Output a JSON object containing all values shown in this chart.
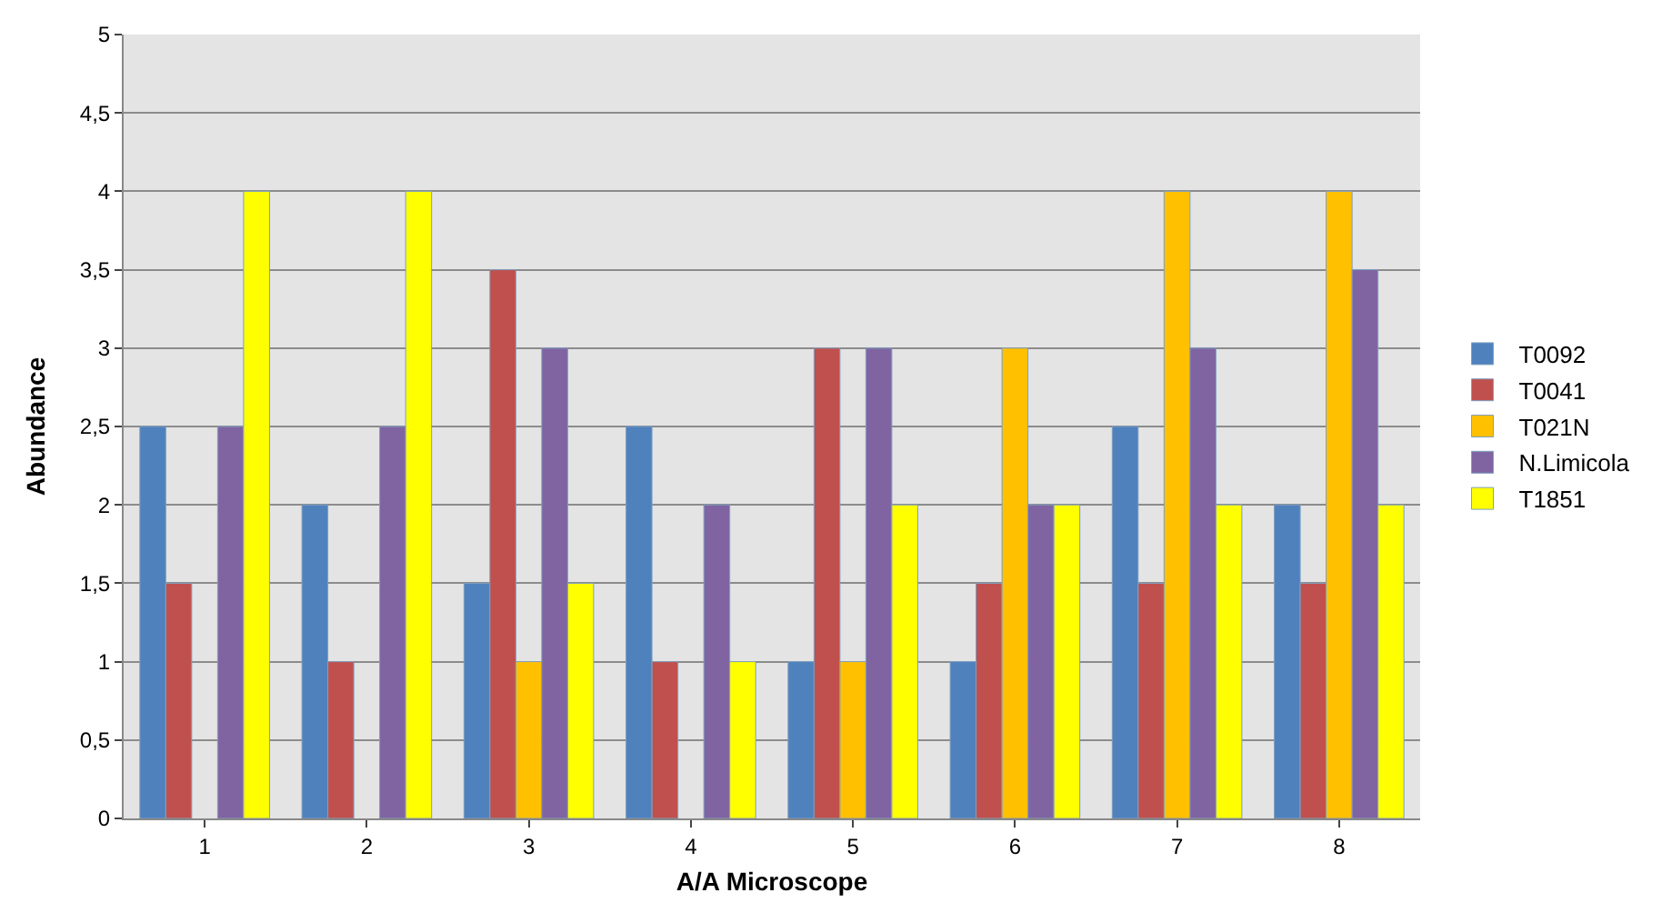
{
  "chart_data": {
    "type": "bar",
    "xlabel": "A/A Microscope",
    "ylabel": "Abundance",
    "categories": [
      "1",
      "2",
      "3",
      "4",
      "5",
      "6",
      "7",
      "8"
    ],
    "series": [
      {
        "name": "T0092",
        "color": "#4f81bd",
        "values": [
          2.5,
          2,
          1.5,
          2.5,
          1,
          1,
          2.5,
          2
        ]
      },
      {
        "name": "T0041",
        "color": "#c0504d",
        "values": [
          1.5,
          1,
          3.5,
          1,
          3,
          1.5,
          1.5,
          1.5
        ]
      },
      {
        "name": "T021N",
        "color": "#ffc000",
        "values": [
          null,
          null,
          1,
          null,
          1,
          3,
          4,
          4
        ]
      },
      {
        "name": "N.Limicola",
        "color": "#8064a2",
        "values": [
          2.5,
          2.5,
          3,
          2,
          3,
          2,
          3,
          3.5
        ]
      },
      {
        "name": "T1851",
        "color": "#ffff00",
        "values": [
          4,
          4,
          1.5,
          1,
          2,
          2,
          2,
          2
        ]
      }
    ],
    "ylim": [
      0,
      5
    ],
    "yticks": [
      0,
      {
        "value": 0.5,
        "label": "0,5"
      },
      1,
      {
        "value": 1.5,
        "label": "1,5"
      },
      2,
      {
        "value": 2.5,
        "label": "2,5"
      },
      3,
      {
        "value": 3.5,
        "label": "3,5"
      },
      4,
      {
        "value": 4.5,
        "label": "4,5"
      },
      5
    ],
    "grid": "y",
    "legend": "right"
  }
}
